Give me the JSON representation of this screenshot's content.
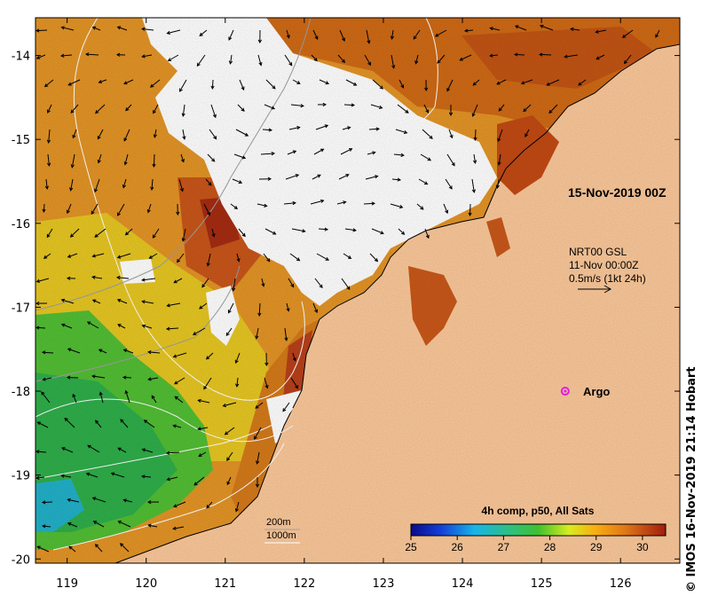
{
  "map": {
    "lon_ticks": [
      "119",
      "120",
      "121",
      "122",
      "123",
      "124",
      "125",
      "126"
    ],
    "lat_ticks": [
      "-14",
      "-15",
      "-16",
      "-17",
      "-18",
      "-19",
      "-20"
    ],
    "lon_range": [
      118.6,
      126.75
    ],
    "lat_range": [
      -20.05,
      -13.55
    ]
  },
  "annotations": {
    "date": "15-Nov-2019 00Z",
    "current_source": "NRT00 GSL",
    "current_time": "11-Nov 00:00Z",
    "current_scale": "0.5m/s (1kt 24h)",
    "argo_label": "Argo",
    "contour_200": "200m",
    "contour_1000": "1000m",
    "credit": "© IMOS 16-Nov-2019 21:14 Hobart"
  },
  "colorbar": {
    "title": "4h comp, p50, All Sats",
    "ticks": [
      "25",
      "26",
      "27",
      "28",
      "29",
      "30"
    ],
    "range": [
      25,
      30.5
    ]
  },
  "argo": {
    "lon": 125.3,
    "lat": -18.0
  },
  "colors": {
    "land": "#fbc89a",
    "cloud": "#ffffff",
    "argo": "#e020e0",
    "warm": "#d97a14",
    "hot": "#b83e10",
    "cool": "#3cc03c"
  }
}
